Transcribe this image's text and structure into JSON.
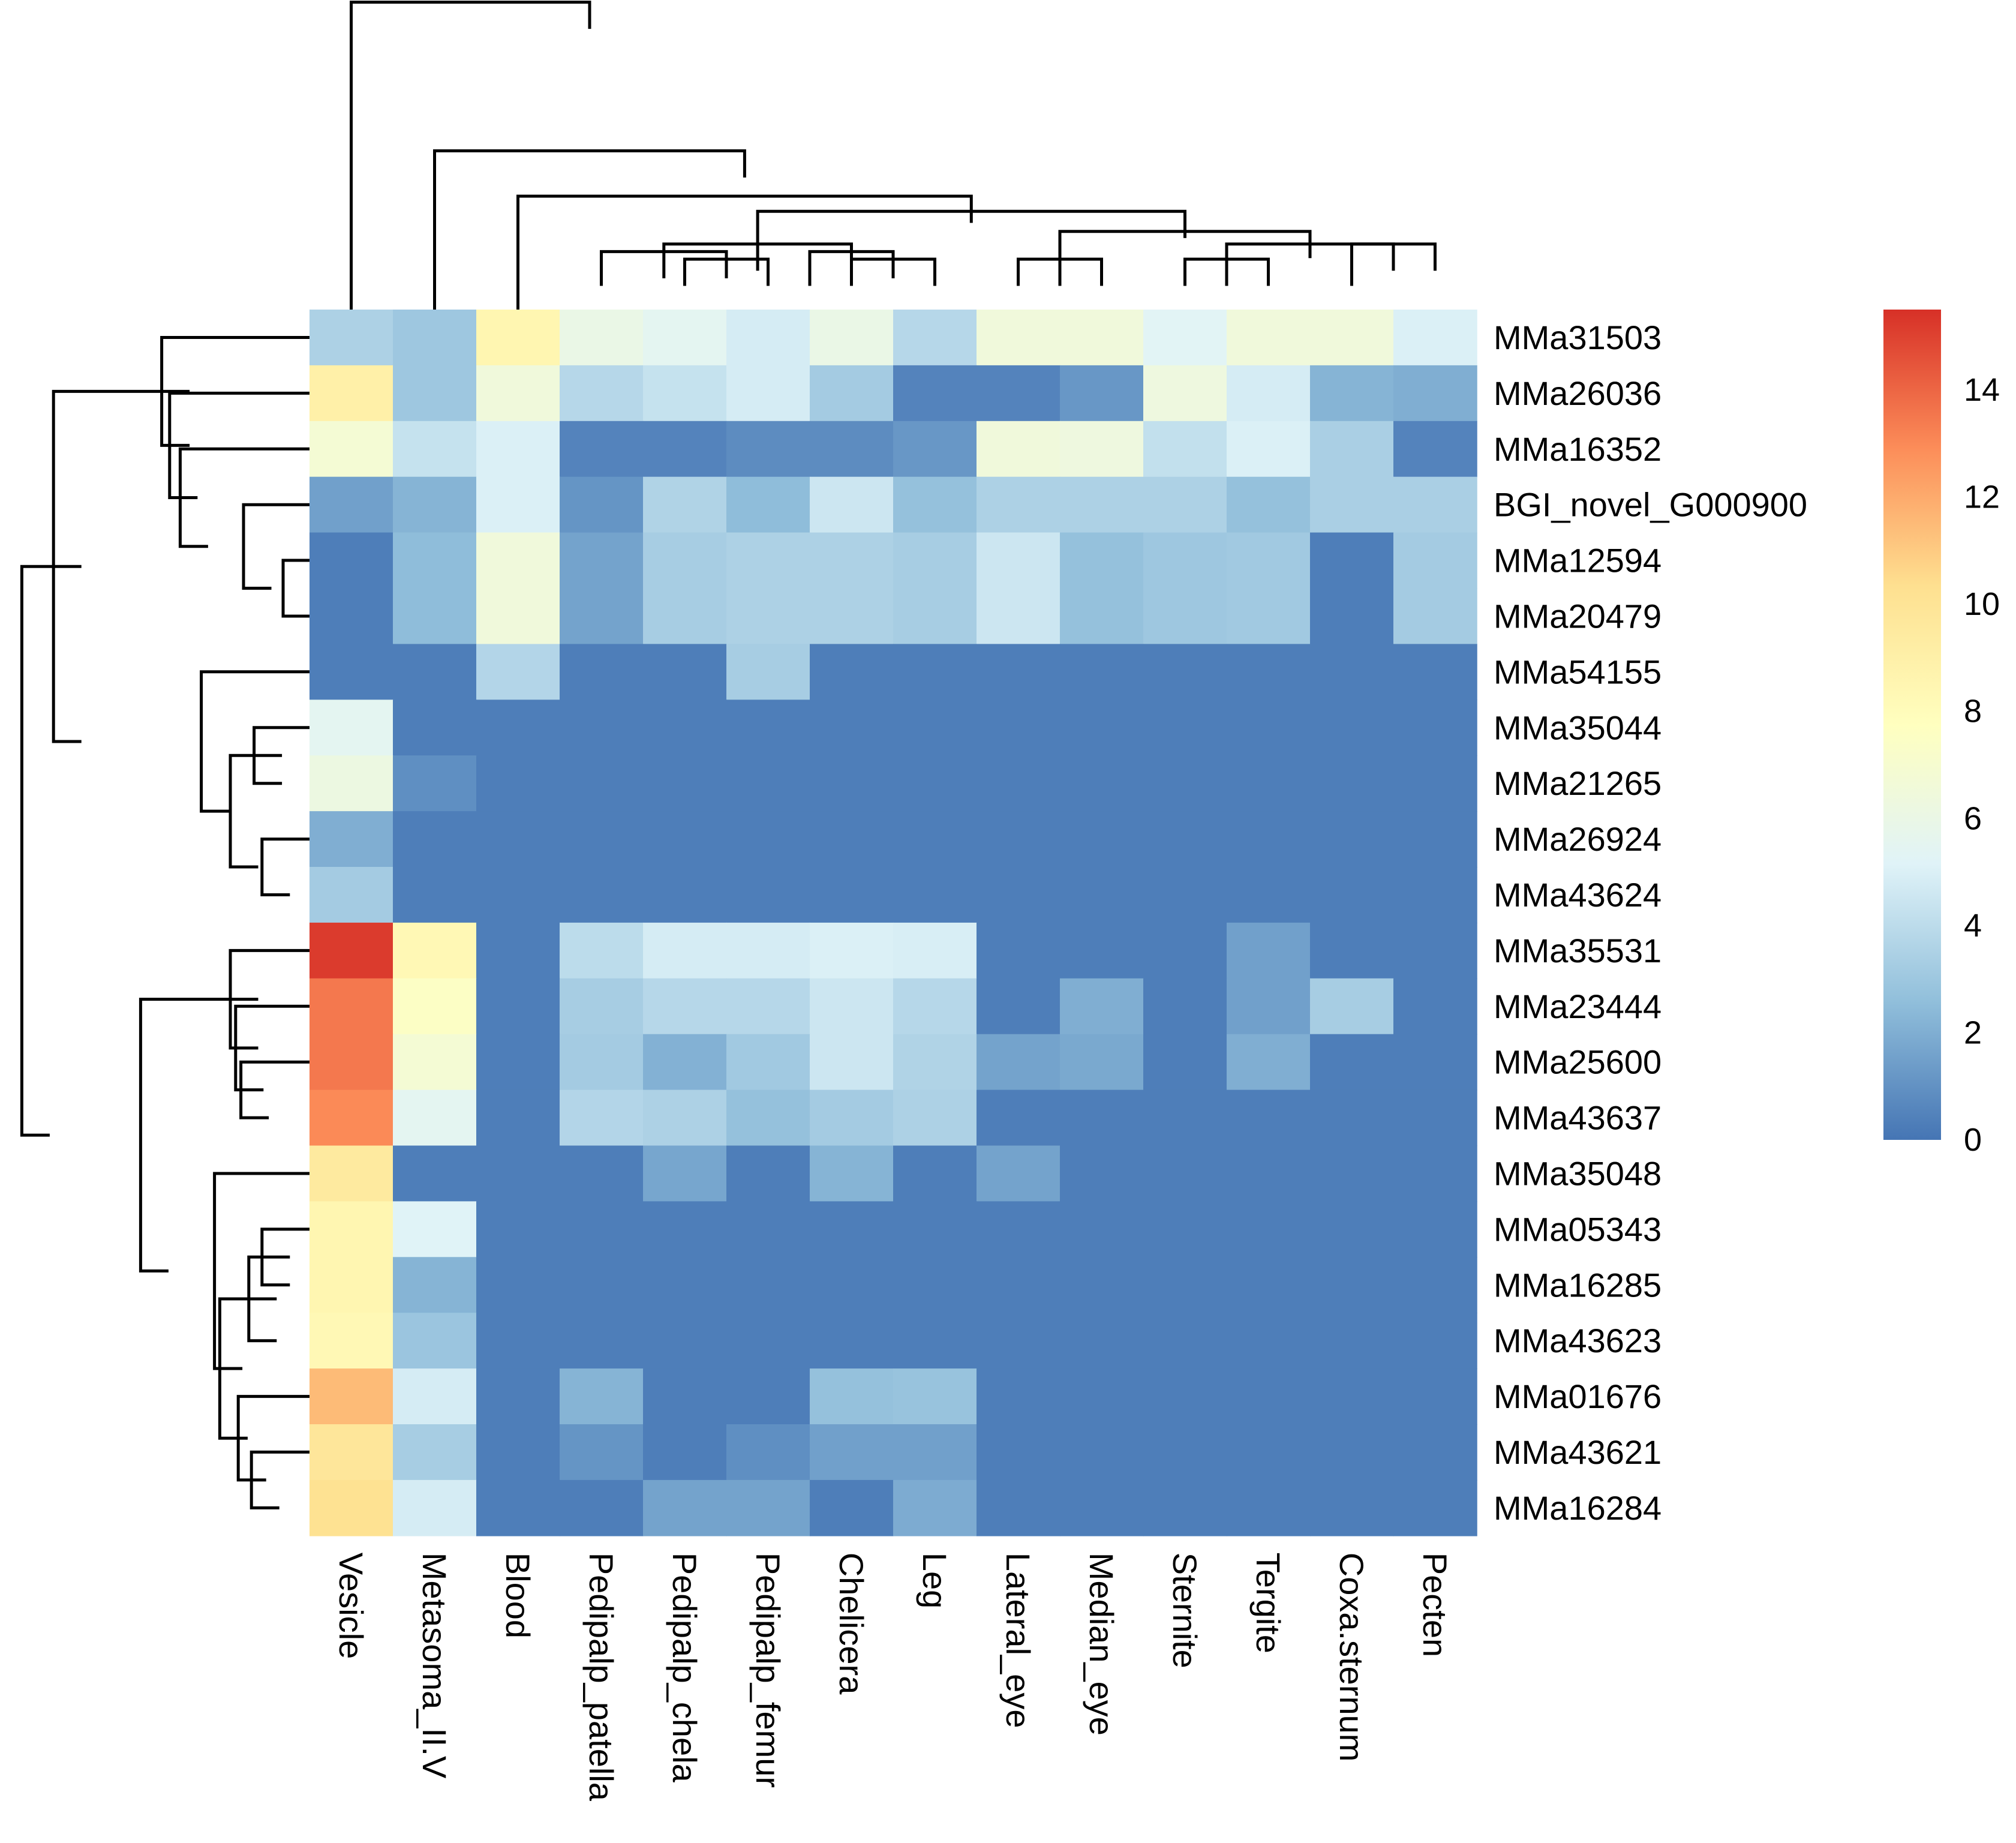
{
  "chart_data": {
    "type": "heatmap",
    "title": "",
    "columns": [
      "Vesicle",
      "Metasoma_II.V",
      "Blood",
      "Pedipalp_patella",
      "Pedipalp_chela",
      "Pedipalp_femur",
      "Chelicera",
      "Leg",
      "Lateral_eye",
      "Median_eye",
      "Sternite",
      "Tergite",
      "Coxa.sternum",
      "Pecten"
    ],
    "rows": [
      "MMa31503",
      "MMa26036",
      "MMa16352",
      "BGI_novel_G000900",
      "MMa12594",
      "MMa20479",
      "MMa54155",
      "MMa35044",
      "MMa21265",
      "MMa26924",
      "MMa43624",
      "MMa35531",
      "MMa23444",
      "MMa25600",
      "MMa43637",
      "MMa35048",
      "MMa05343",
      "MMa16285",
      "MMa43623",
      "MMa01676",
      "MMa43621",
      "MMa16284"
    ],
    "values": [
      [
        3.5,
        3,
        8.5,
        6,
        5.5,
        4.8,
        6,
        3.8,
        6.5,
        6.5,
        5.3,
        6.5,
        6.5,
        5
      ],
      [
        9,
        3,
        6.5,
        3.8,
        4.3,
        4.8,
        3.2,
        0.5,
        0.5,
        1.2,
        6.3,
        4.8,
        2.2,
        2
      ],
      [
        6.8,
        4.3,
        5,
        0.5,
        0.5,
        0.8,
        0.8,
        1.2,
        6.5,
        6.3,
        4.2,
        5,
        3.4,
        0.5
      ],
      [
        1.5,
        2.2,
        5,
        1.1,
        3.6,
        2.5,
        4.5,
        2.7,
        3.5,
        3.5,
        3.5,
        2.7,
        3.4,
        3.4
      ],
      [
        0.3,
        2.5,
        6.5,
        1.6,
        3.3,
        3.5,
        3.5,
        3.3,
        4.5,
        2.7,
        3,
        3.1,
        0.3,
        3.2
      ],
      [
        0.3,
        2.5,
        6.5,
        1.6,
        3.3,
        3.5,
        3.5,
        3.3,
        4.5,
        2.7,
        3,
        3.1,
        0.3,
        3.2
      ],
      [
        0.3,
        0.3,
        3.7,
        0.3,
        0.3,
        3.3,
        0.3,
        0.3,
        0.3,
        0.3,
        0.3,
        0.3,
        0.3,
        0.3
      ],
      [
        5.5,
        0.3,
        0.3,
        0.3,
        0.3,
        0.3,
        0.3,
        0.3,
        0.3,
        0.3,
        0.3,
        0.3,
        0.3,
        0.3
      ],
      [
        6.2,
        0.9,
        0.3,
        0.3,
        0.3,
        0.3,
        0.3,
        0.3,
        0.3,
        0.3,
        0.3,
        0.3,
        0.3,
        0.3
      ],
      [
        2,
        0.3,
        0.3,
        0.3,
        0.3,
        0.3,
        0.3,
        0.3,
        0.3,
        0.3,
        0.3,
        0.3,
        0.3,
        0.3
      ],
      [
        3.2,
        0.3,
        0.3,
        0.3,
        0.3,
        0.3,
        0.3,
        0.3,
        0.3,
        0.3,
        0.3,
        0.3,
        0.3,
        0.3
      ],
      [
        15.2,
        8.3,
        0.3,
        4,
        4.8,
        4.8,
        5,
        4.9,
        0.3,
        0.3,
        0.3,
        1.5,
        0.3,
        0.3
      ],
      [
        13.5,
        7.5,
        0.3,
        3.3,
        3.8,
        3.8,
        4.5,
        3.8,
        0.3,
        2,
        0.3,
        1.5,
        3.3,
        0.3
      ],
      [
        13.5,
        6.8,
        0.3,
        3.2,
        2.1,
        3.1,
        4.5,
        3.6,
        1.6,
        1.8,
        0.3,
        2,
        0.3,
        0.3
      ],
      [
        13,
        5.5,
        0.3,
        3.7,
        3.5,
        2.7,
        3.2,
        3.5,
        0.3,
        0.3,
        0.3,
        0.3,
        0.3,
        0.3
      ],
      [
        9.5,
        0.3,
        0.3,
        0.3,
        1.7,
        0.3,
        2.2,
        0.3,
        1.6,
        0.3,
        0.3,
        0.3,
        0.3,
        0.3
      ],
      [
        8.5,
        5.2,
        0.3,
        0.3,
        0.3,
        0.3,
        0.3,
        0.3,
        0.3,
        0.3,
        0.3,
        0.3,
        0.3,
        0.3
      ],
      [
        8.5,
        2.2,
        0.3,
        0.3,
        0.3,
        0.3,
        0.3,
        0.3,
        0.3,
        0.3,
        0.3,
        0.3,
        0.3,
        0.3
      ],
      [
        8.3,
        2.9,
        0.3,
        0.3,
        0.3,
        0.3,
        0.3,
        0.3,
        0.3,
        0.3,
        0.3,
        0.3,
        0.3,
        0.3
      ],
      [
        11.5,
        4.8,
        0.3,
        2.2,
        0.3,
        0.3,
        2.7,
        2.8,
        0.3,
        0.3,
        0.3,
        0.3,
        0.3,
        0.3
      ],
      [
        9.8,
        3.3,
        0.3,
        1.1,
        0.3,
        0.9,
        1.5,
        1.5,
        0.3,
        0.3,
        0.3,
        0.3,
        0.3,
        0.3
      ],
      [
        10.2,
        4.8,
        0.3,
        0.3,
        1.6,
        1.6,
        0.3,
        1.9,
        0.3,
        0.3,
        0.3,
        0.3,
        0.3,
        0.3
      ]
    ],
    "color_scale": {
      "min": 0,
      "max": 15.5,
      "stops": [
        "#4575B4",
        "#91BFDB",
        "#E0F3F8",
        "#FFFFBF",
        "#FEE090",
        "#FC8D59",
        "#D73027"
      ],
      "ticks": [
        0,
        2,
        4,
        6,
        8,
        10,
        12,
        14
      ]
    },
    "column_dendrogram_merges": [
      [
        [
          4,
          5
        ],
        [
          1,
          1
        ]
      ],
      [
        [
          6,
          7
        ],
        [
          1,
          1
        ]
      ],
      [
        [
          3,
          4.5
        ],
        [
          1,
          1.3
        ]
      ],
      [
        [
          5.5,
          6.5
        ],
        [
          1,
          1.3
        ]
      ],
      [
        [
          3.75,
          6
        ],
        [
          1.3,
          1.6
        ]
      ],
      [
        [
          8,
          9
        ],
        [
          1,
          1
        ]
      ],
      [
        [
          10,
          11
        ],
        [
          1,
          1
        ]
      ],
      [
        [
          12,
          13
        ],
        [
          1,
          1.6
        ]
      ],
      [
        [
          10.5,
          12.5
        ],
        [
          1,
          1.6
        ]
      ],
      [
        [
          8.5,
          11.5
        ],
        [
          1,
          2.1
        ]
      ],
      [
        [
          4.875,
          10
        ],
        [
          1.6,
          2.9
        ]
      ],
      [
        [
          2,
          7.4375
        ],
        [
          0,
          3.5
        ]
      ],
      [
        [
          1,
          4.71875
        ],
        [
          0,
          5.3
        ]
      ],
      [
        [
          0,
          2.859375
        ],
        [
          0,
          11.2
        ]
      ]
    ],
    "row_dendrogram_merges": [
      [
        [
          4,
          5
        ],
        [
          0,
          0
        ]
      ],
      [
        [
          3,
          4.5
        ],
        [
          0,
          1.5
        ]
      ],
      [
        [
          2,
          3.75
        ],
        [
          0,
          3.9
        ]
      ],
      [
        [
          1,
          2.875
        ],
        [
          0,
          4.3
        ]
      ],
      [
        [
          0,
          1.9375
        ],
        [
          0,
          4.6
        ]
      ],
      [
        [
          9,
          10
        ],
        [
          0,
          0.8
        ]
      ],
      [
        [
          7,
          8
        ],
        [
          0,
          1.1
        ]
      ],
      [
        [
          7.5,
          9.5
        ],
        [
          1.1,
          2
        ]
      ],
      [
        [
          6,
          8.5
        ],
        [
          0,
          3.1
        ]
      ],
      [
        [
          0.96875,
          7.25
        ],
        [
          4.6,
          8.7
        ]
      ],
      [
        [
          13,
          14
        ],
        [
          0,
          1.6
        ]
      ],
      [
        [
          12,
          13.5
        ],
        [
          0,
          1.8
        ]
      ],
      [
        [
          11,
          12.75
        ],
        [
          0,
          2
        ]
      ],
      [
        [
          16,
          17
        ],
        [
          0,
          0.8
        ]
      ],
      [
        [
          16.5,
          18
        ],
        [
          0.8,
          1.3
        ]
      ],
      [
        [
          20,
          21
        ],
        [
          0,
          1.2
        ]
      ],
      [
        [
          19,
          20.5
        ],
        [
          0,
          1.7
        ]
      ],
      [
        [
          17.25,
          19.75
        ],
        [
          1.3,
          2.4
        ]
      ],
      [
        [
          15,
          18.5
        ],
        [
          0,
          2.6
        ]
      ],
      [
        [
          11.875,
          16.75
        ],
        [
          2,
          5.4
        ]
      ],
      [
        [
          4.109375,
          14.3125
        ],
        [
          8.7,
          9.9
        ]
      ]
    ]
  }
}
